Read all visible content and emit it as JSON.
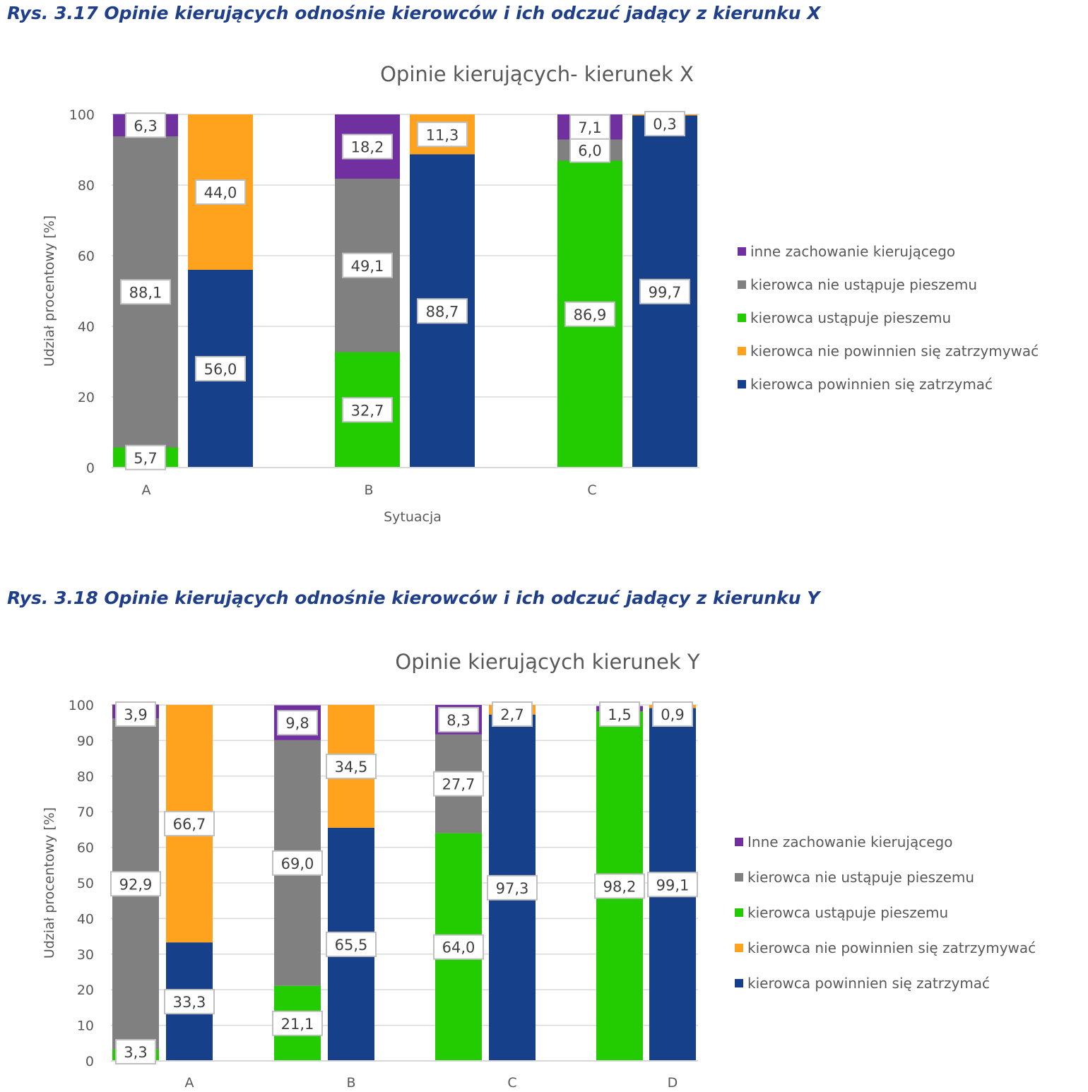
{
  "figure1": {
    "caption": "Rys. 3.17 Opinie kierujących odnośnie kierowców i ich odczuć jadący z kierunku X"
  },
  "figure2": {
    "caption": "Rys. 3.18 Opinie kierujących odnośnie kierowców i ich odczuć jadący z kierunku Y"
  },
  "colors": {
    "purple": "#7030a0",
    "gray": "#808080",
    "green": "#22cc00",
    "orange": "#ffa31f",
    "blue": "#17408b"
  },
  "chart_data": [
    {
      "type": "bar",
      "stacked": true,
      "title": "Opinie kierujących- kierunek X",
      "xlabel": "Sytuacja",
      "ylabel": "Udział procentowy [%]",
      "ylim": [
        0,
        100
      ],
      "yticks": [
        0,
        20,
        40,
        60,
        80,
        100
      ],
      "grid": true,
      "legend_position": "right",
      "categories": [
        "A",
        "B",
        "C"
      ],
      "legend": [
        {
          "name": "inne zachowanie kierującego",
          "color": "purple"
        },
        {
          "name": "kierowca nie ustąpuje pieszemu",
          "color": "gray"
        },
        {
          "name": "kierowca ustąpuje pieszemu",
          "color": "green"
        },
        {
          "name": "kierowca nie powinnien się zatrzymywać",
          "color": "orange"
        },
        {
          "name": "kierowca powinnien się zatrzymać",
          "color": "blue"
        }
      ],
      "bars": [
        {
          "category": "A",
          "segments": [
            {
              "series": "kierowca ustąpuje pieszemu",
              "color": "green",
              "value": 5.7,
              "label": "5,7"
            },
            {
              "series": "kierowca nie ustąpuje pieszemu",
              "color": "gray",
              "value": 88.1,
              "label": "88,1"
            },
            {
              "series": "inne zachowanie kierującego",
              "color": "purple",
              "value": 6.3,
              "label": "6,3"
            }
          ]
        },
        {
          "category": "A",
          "segments": [
            {
              "series": "kierowca powinnien się zatrzymać",
              "color": "blue",
              "value": 56.0,
              "label": "56,0"
            },
            {
              "series": "kierowca nie powinnien się zatrzymywać",
              "color": "orange",
              "value": 44.0,
              "label": "44,0"
            }
          ]
        },
        {
          "category": "B",
          "segments": [
            {
              "series": "kierowca ustąpuje pieszemu",
              "color": "green",
              "value": 32.7,
              "label": "32,7"
            },
            {
              "series": "kierowca nie ustąpuje pieszemu",
              "color": "gray",
              "value": 49.1,
              "label": "49,1"
            },
            {
              "series": "inne zachowanie kierującego",
              "color": "purple",
              "value": 18.2,
              "label": "18,2"
            }
          ]
        },
        {
          "category": "B",
          "segments": [
            {
              "series": "kierowca powinnien się zatrzymać",
              "color": "blue",
              "value": 88.7,
              "label": "88,7"
            },
            {
              "series": "kierowca nie powinnien się zatrzymywać",
              "color": "orange",
              "value": 11.3,
              "label": "11,3"
            }
          ]
        },
        {
          "category": "C",
          "segments": [
            {
              "series": "kierowca ustąpuje pieszemu",
              "color": "green",
              "value": 86.9,
              "label": "86,9"
            },
            {
              "series": "kierowca nie ustąpuje pieszemu",
              "color": "gray",
              "value": 6.0,
              "label": "6,0"
            },
            {
              "series": "inne zachowanie kierującego",
              "color": "purple",
              "value": 7.1,
              "label": "7,1"
            }
          ]
        },
        {
          "category": "C",
          "segments": [
            {
              "series": "kierowca powinnien się zatrzymać",
              "color": "blue",
              "value": 99.7,
              "label": "99,7"
            },
            {
              "series": "kierowca nie powinnien się zatrzymywać",
              "color": "orange",
              "value": 0.3,
              "label": "0,3"
            }
          ]
        }
      ]
    },
    {
      "type": "bar",
      "stacked": true,
      "title": "Opinie kierujących kierunek Y",
      "xlabel": "",
      "ylabel": "Udział procentowy [%]",
      "ylim": [
        0,
        100
      ],
      "yticks": [
        0,
        10,
        20,
        30,
        40,
        50,
        60,
        70,
        80,
        90,
        100
      ],
      "grid": true,
      "legend_position": "right",
      "categories": [
        "A",
        "B",
        "C",
        "D"
      ],
      "legend": [
        {
          "name": "Inne zachowanie kierującego",
          "color": "purple"
        },
        {
          "name": "kierowca nie ustąpuje pieszemu",
          "color": "gray"
        },
        {
          "name": "kierowca ustąpuje pieszemu",
          "color": "green"
        },
        {
          "name": "kierowca nie powinnien się zatrzymywać",
          "color": "orange"
        },
        {
          "name": "kierowca powinnien się zatrzymać",
          "color": "blue"
        }
      ],
      "bars": [
        {
          "category": "A",
          "segments": [
            {
              "series": "kierowca ustąpuje pieszemu",
              "color": "green",
              "value": 3.3,
              "label": "3,3"
            },
            {
              "series": "kierowca nie ustąpuje pieszemu",
              "color": "gray",
              "value": 92.9,
              "label": "92,9"
            },
            {
              "series": "Inne zachowanie kierującego",
              "color": "purple",
              "value": 3.9,
              "label": "3,9"
            }
          ]
        },
        {
          "category": "A",
          "segments": [
            {
              "series": "kierowca powinnien się zatrzymać",
              "color": "blue",
              "value": 33.3,
              "label": "33,3"
            },
            {
              "series": "kierowca nie powinnien się zatrzymywać",
              "color": "orange",
              "value": 66.7,
              "label": "66,7"
            }
          ]
        },
        {
          "category": "B",
          "segments": [
            {
              "series": "kierowca ustąpuje pieszemu",
              "color": "green",
              "value": 21.1,
              "label": "21,1"
            },
            {
              "series": "kierowca nie ustąpuje pieszemu",
              "color": "gray",
              "value": 69.0,
              "label": "69,0"
            },
            {
              "series": "Inne zachowanie kierującego",
              "color": "purple",
              "value": 9.8,
              "label": "9,8"
            }
          ]
        },
        {
          "category": "B",
          "segments": [
            {
              "series": "kierowca powinnien się zatrzymać",
              "color": "blue",
              "value": 65.5,
              "label": "65,5"
            },
            {
              "series": "kierowca nie powinnien się zatrzymywać",
              "color": "orange",
              "value": 34.5,
              "label": "34,5"
            }
          ]
        },
        {
          "category": "C",
          "segments": [
            {
              "series": "kierowca ustąpuje pieszemu",
              "color": "green",
              "value": 64.0,
              "label": "64,0"
            },
            {
              "series": "kierowca nie ustąpuje pieszemu",
              "color": "gray",
              "value": 27.7,
              "label": "27,7"
            },
            {
              "series": "Inne zachowanie kierującego",
              "color": "purple",
              "value": 8.3,
              "label": "8,3"
            }
          ]
        },
        {
          "category": "C",
          "segments": [
            {
              "series": "kierowca powinnien się zatrzymać",
              "color": "blue",
              "value": 97.3,
              "label": "97,3"
            },
            {
              "series": "kierowca nie powinnien się zatrzymywać",
              "color": "orange",
              "value": 2.7,
              "label": "2,7"
            }
          ]
        },
        {
          "category": "D",
          "segments": [
            {
              "series": "kierowca ustąpuje pieszemu",
              "color": "green",
              "value": 98.2,
              "label": "98,2"
            },
            {
              "series": "Inne zachowanie kierującego",
              "color": "purple",
              "value": 1.5,
              "label": "1,5"
            }
          ]
        },
        {
          "category": "D",
          "segments": [
            {
              "series": "kierowca powinnien się zatrzymać",
              "color": "blue",
              "value": 99.1,
              "label": "99,1"
            },
            {
              "series": "kierowca nie powinnien się zatrzymywać",
              "color": "orange",
              "value": 0.9,
              "label": "0,9"
            }
          ]
        }
      ]
    }
  ]
}
